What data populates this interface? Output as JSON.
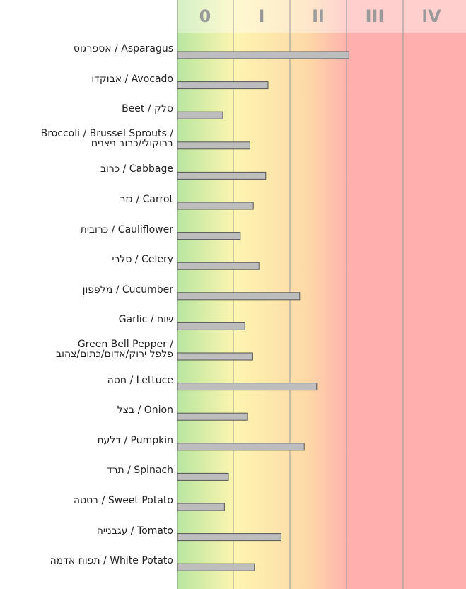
{
  "chart_data": {
    "type": "bar",
    "orientation": "horizontal",
    "categories": [
      "אספרגוס / Asparagus",
      "אבוקדו / Avocado",
      "Beet / סלק",
      [
        "Broccoli / Brussel Sprouts /",
        "ברוקולי/כרוב ניצנים"
      ],
      "כרוב / Cabbage",
      "גזר / Carrot",
      "כרובית / Cauliflower",
      "סלרי / Celery",
      "מלפפון / Cucumber",
      "Garlic / שום",
      [
        "Green Bell Pepper /",
        "פלפל ירוק/אדום/כתום/צהוב"
      ],
      "חסה / Lettuce",
      "בצל / Onion",
      "דלעת / Pumpkin",
      "תרד / Spinach",
      "בטטה / Sweet Potato",
      "עגבנייה / Tomato",
      "תפוח אדמה / White Potato"
    ],
    "values": [
      3.03,
      1.6,
      0.8,
      1.28,
      1.56,
      1.34,
      1.11,
      1.44,
      2.16,
      1.19,
      1.33,
      2.46,
      1.24,
      2.24,
      0.9,
      0.83,
      1.83,
      1.36
    ],
    "color": "#bdbdbd",
    "xlim": [
      0,
      5
    ],
    "xticks": [
      {
        "value": 0.5,
        "label": "0"
      },
      {
        "value": 1.5,
        "label": "I"
      },
      {
        "value": 2.5,
        "label": "II"
      },
      {
        "value": 3.5,
        "label": "III"
      },
      {
        "value": 4.5,
        "label": "IV"
      }
    ],
    "grid": true
  }
}
